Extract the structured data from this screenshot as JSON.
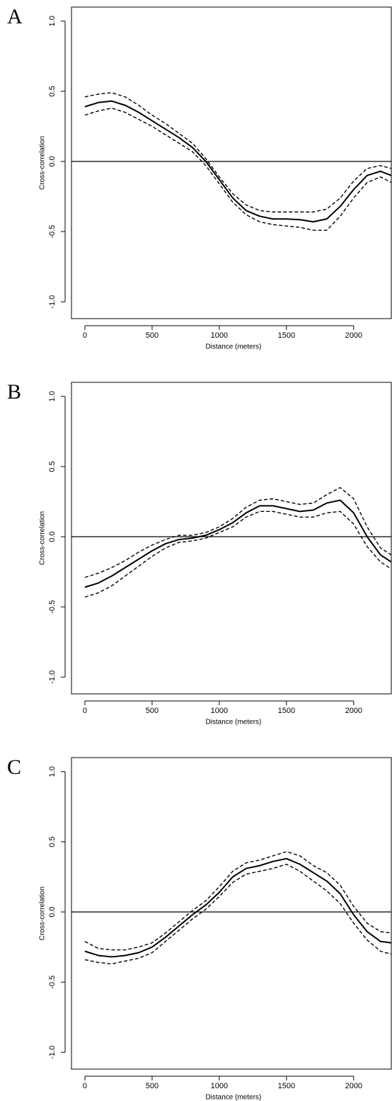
{
  "chart_data": [
    {
      "type": "line",
      "panel_label": "A",
      "x_label": "Distance (meters)",
      "y_label": "Cross-correlation",
      "xlim": [
        -100,
        2280
      ],
      "ylim": [
        -1.12,
        1.1
      ],
      "xticks": [
        0,
        500,
        1000,
        1500,
        2000
      ],
      "yticks": [
        {
          "value": -1,
          "label": "-1.0"
        },
        -0.5,
        {
          "value": 0,
          "label": "0.0"
        },
        0.5,
        {
          "value": 1,
          "label": "1.0"
        }
      ],
      "reference_line": 0,
      "x": [
        0,
        100,
        200,
        300,
        400,
        500,
        600,
        700,
        800,
        900,
        1000,
        1100,
        1200,
        1300,
        1400,
        1500,
        1600,
        1700,
        1800,
        1900,
        2000,
        2100,
        2200,
        2280
      ],
      "series": [
        {
          "color": "#000000",
          "style": "solid",
          "values": [
            0.39,
            0.42,
            0.43,
            0.4,
            0.35,
            0.29,
            0.23,
            0.17,
            0.1,
            0.0,
            -0.13,
            -0.26,
            -0.35,
            -0.39,
            -0.41,
            -0.41,
            -0.415,
            -0.43,
            -0.41,
            -0.32,
            -0.2,
            -0.1,
            -0.07,
            -0.1
          ]
        },
        {
          "color": "#000000",
          "style": "dashed",
          "values": [
            0.46,
            0.48,
            0.49,
            0.46,
            0.4,
            0.33,
            0.27,
            0.2,
            0.13,
            0.02,
            -0.11,
            -0.23,
            -0.31,
            -0.35,
            -0.36,
            -0.36,
            -0.36,
            -0.36,
            -0.34,
            -0.26,
            -0.14,
            -0.05,
            -0.03,
            -0.05
          ]
        },
        {
          "color": "#000000",
          "style": "dashed",
          "values": [
            0.33,
            0.36,
            0.38,
            0.35,
            0.3,
            0.25,
            0.19,
            0.13,
            0.07,
            -0.03,
            -0.16,
            -0.29,
            -0.38,
            -0.43,
            -0.45,
            -0.46,
            -0.47,
            -0.49,
            -0.49,
            -0.39,
            -0.26,
            -0.15,
            -0.11,
            -0.15
          ]
        }
      ]
    },
    {
      "type": "line",
      "panel_label": "B",
      "x_label": "Distance (meters)",
      "y_label": "Cross-correlation",
      "xlim": [
        -100,
        2280
      ],
      "ylim": [
        -1.12,
        1.1
      ],
      "xticks": [
        0,
        500,
        1000,
        1500,
        2000
      ],
      "yticks": [
        {
          "value": -1,
          "label": "-1.0"
        },
        -0.5,
        {
          "value": 0,
          "label": "0.0"
        },
        0.5,
        {
          "value": 1,
          "label": "1.0"
        }
      ],
      "reference_line": 0,
      "x": [
        0,
        100,
        200,
        300,
        400,
        500,
        600,
        700,
        800,
        900,
        1000,
        1100,
        1200,
        1300,
        1400,
        1500,
        1600,
        1700,
        1800,
        1900,
        2000,
        2100,
        2200,
        2280
      ],
      "series": [
        {
          "color": "#000000",
          "style": "solid",
          "values": [
            -0.36,
            -0.33,
            -0.28,
            -0.22,
            -0.16,
            -0.1,
            -0.05,
            -0.02,
            -0.01,
            0.01,
            0.05,
            0.1,
            0.17,
            0.22,
            0.22,
            0.2,
            0.18,
            0.19,
            0.24,
            0.26,
            0.17,
            0.0,
            -0.13,
            -0.18
          ]
        },
        {
          "color": "#000000",
          "style": "dashed",
          "values": [
            -0.29,
            -0.26,
            -0.22,
            -0.17,
            -0.11,
            -0.06,
            -0.02,
            0.01,
            0.01,
            0.03,
            0.07,
            0.13,
            0.21,
            0.26,
            0.27,
            0.25,
            0.23,
            0.24,
            0.3,
            0.35,
            0.27,
            0.07,
            -0.08,
            -0.13
          ]
        },
        {
          "color": "#000000",
          "style": "dashed",
          "values": [
            -0.43,
            -0.4,
            -0.35,
            -0.28,
            -0.21,
            -0.14,
            -0.08,
            -0.04,
            -0.03,
            -0.01,
            0.03,
            0.07,
            0.14,
            0.18,
            0.18,
            0.16,
            0.14,
            0.14,
            0.17,
            0.18,
            0.09,
            -0.07,
            -0.18,
            -0.23
          ]
        }
      ]
    },
    {
      "type": "line",
      "panel_label": "C",
      "x_label": "Distance (meters)",
      "y_label": "Cross-correlation",
      "xlim": [
        -100,
        2280
      ],
      "ylim": [
        -1.12,
        1.1
      ],
      "xticks": [
        0,
        500,
        1000,
        1500,
        2000
      ],
      "yticks": [
        {
          "value": -1,
          "label": "-1.0"
        },
        -0.5,
        {
          "value": 0,
          "label": "0.0"
        },
        0.5,
        {
          "value": 1,
          "label": "1.0"
        }
      ],
      "reference_line": 0,
      "x": [
        0,
        100,
        200,
        300,
        400,
        500,
        600,
        700,
        800,
        900,
        1000,
        1100,
        1200,
        1300,
        1400,
        1500,
        1600,
        1700,
        1800,
        1900,
        2000,
        2100,
        2200,
        2280
      ],
      "series": [
        {
          "color": "#000000",
          "style": "solid",
          "values": [
            -0.28,
            -0.31,
            -0.32,
            -0.31,
            -0.29,
            -0.25,
            -0.18,
            -0.1,
            -0.02,
            0.05,
            0.14,
            0.25,
            0.31,
            0.33,
            0.36,
            0.38,
            0.34,
            0.28,
            0.22,
            0.13,
            -0.02,
            -0.14,
            -0.21,
            -0.22
          ]
        },
        {
          "color": "#000000",
          "style": "dashed",
          "values": [
            -0.21,
            -0.26,
            -0.27,
            -0.27,
            -0.25,
            -0.22,
            -0.15,
            -0.07,
            0.01,
            0.08,
            0.18,
            0.29,
            0.35,
            0.37,
            0.4,
            0.43,
            0.4,
            0.33,
            0.28,
            0.19,
            0.04,
            -0.08,
            -0.14,
            -0.15
          ]
        },
        {
          "color": "#000000",
          "style": "dashed",
          "values": [
            -0.34,
            -0.36,
            -0.37,
            -0.35,
            -0.33,
            -0.29,
            -0.21,
            -0.13,
            -0.05,
            0.02,
            0.11,
            0.21,
            0.27,
            0.29,
            0.31,
            0.34,
            0.29,
            0.22,
            0.15,
            0.06,
            -0.08,
            -0.2,
            -0.28,
            -0.3
          ]
        }
      ]
    }
  ]
}
